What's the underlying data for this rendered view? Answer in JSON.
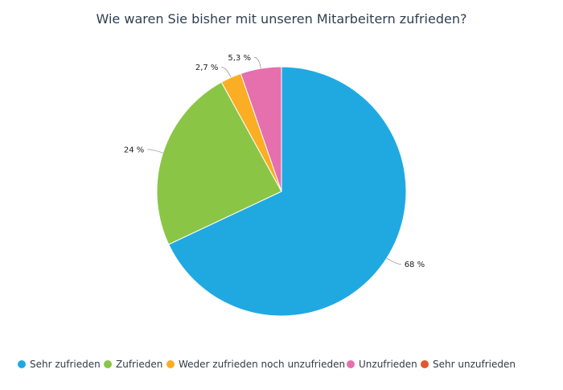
{
  "chart_data": {
    "type": "pie",
    "title": "Wie waren Sie bisher mit unseren Mitarbeitern zufrieden?",
    "categories": [
      "Sehr zufrieden",
      "Zufrieden",
      "Weder zufrieden noch unzufrieden",
      "Unzufrieden",
      "Sehr unzufrieden"
    ],
    "values": [
      68,
      24,
      2.7,
      5.3,
      0
    ],
    "labels": [
      "68 %",
      "24 %",
      "2,7 %",
      "5,3 %",
      ""
    ],
    "colors": [
      "#20a9e1",
      "#8bc546",
      "#fbad24",
      "#e66fae",
      "#e4562b"
    ],
    "legend_position": "bottom",
    "start_angle_deg": 0,
    "direction": "clockwise",
    "grid": false
  }
}
